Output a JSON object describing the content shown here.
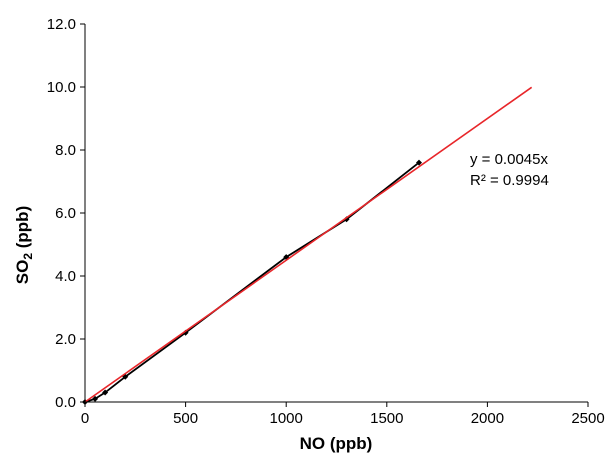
{
  "chart_data": {
    "type": "scatter",
    "xlabel": "NO (ppb)",
    "ylabel_main": "SO",
    "ylabel_sub": "2",
    "ylabel_unit": " (ppb)",
    "xlim": [
      0,
      2500
    ],
    "ylim": [
      0,
      12
    ],
    "x_ticks": [
      0,
      500,
      1000,
      1500,
      2000,
      2500
    ],
    "x_tick_labels": [
      "0",
      "500",
      "1000",
      "1500",
      "2000",
      "2500"
    ],
    "y_ticks": [
      0,
      2,
      4,
      6,
      8,
      10,
      12
    ],
    "y_tick_labels": [
      "0.0",
      "2.0",
      "4.0",
      "6.0",
      "8.0",
      "10.0",
      "12.0"
    ],
    "grid": false,
    "series": [
      {
        "x": [
          0,
          50,
          100,
          200,
          500,
          1000,
          1300,
          1660
        ],
        "y": [
          0.0,
          0.1,
          0.3,
          0.8,
          2.2,
          4.6,
          5.8,
          7.6
        ],
        "color": "#000000",
        "marker": "diamond",
        "connected": true
      }
    ],
    "trendline": {
      "slope": 0.0045,
      "x_range": [
        0,
        2220
      ],
      "color": "#e8262a"
    },
    "annotations": [
      "y = 0.0045x",
      "R² = 0.9994"
    ]
  }
}
